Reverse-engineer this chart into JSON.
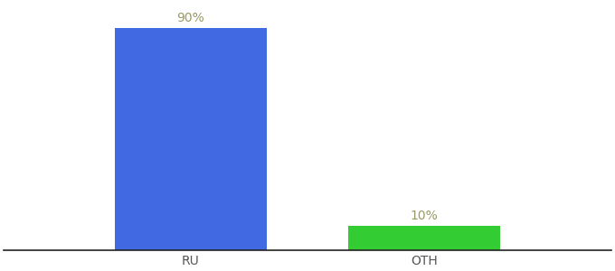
{
  "categories": [
    "RU",
    "OTH"
  ],
  "values": [
    90,
    10
  ],
  "bar_colors": [
    "#4169e1",
    "#33cc33"
  ],
  "label_texts": [
    "90%",
    "10%"
  ],
  "ylim": [
    0,
    100
  ],
  "background_color": "#ffffff",
  "label_color": "#999966",
  "tick_color": "#555555",
  "label_fontsize": 10,
  "tick_fontsize": 10,
  "bar_width": 0.65
}
